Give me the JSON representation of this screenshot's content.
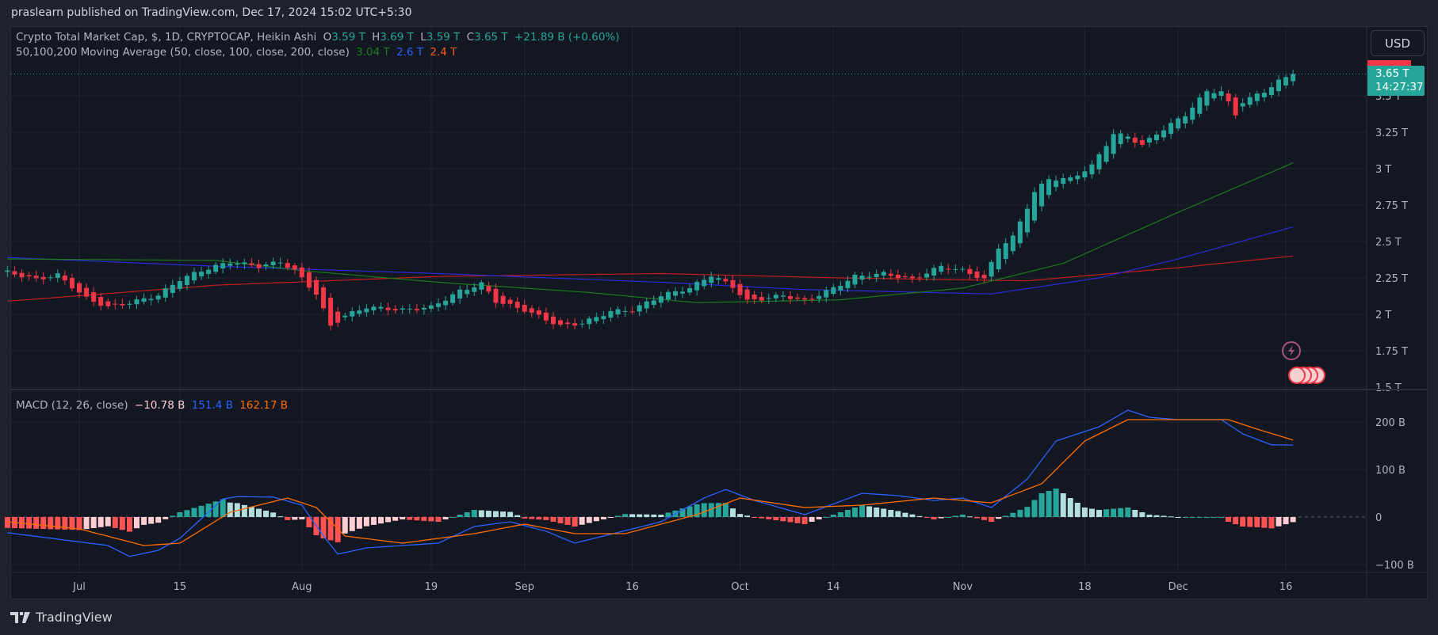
{
  "header": {
    "published": "praslearn published on TradingView.com, Dec 17, 2024 15:02 UTC+5:30"
  },
  "legend": {
    "title": "Crypto Total Market Cap, $, 1D, CRYPTOCAP, Heikin Ashi",
    "o_label": "O",
    "o": "3.59 T",
    "h_label": "H",
    "h": "3.69 T",
    "l_label": "L",
    "l": "3.59 T",
    "c_label": "C",
    "c": "3.65 T",
    "change": "+21.89 B (+0.60%)",
    "ma_title": "50,100,200 Moving Average (50, close, 100, close, 200, close)",
    "ma50": "3.04 T",
    "ma100": "2.6 T",
    "ma200": "2.4 T",
    "macd_title": "MACD (12, 26, close)",
    "macd_hist": "−10.78 B",
    "macd": "151.4 B",
    "macd_signal": "162.17 B"
  },
  "currency_button": "USD",
  "price_badge": {
    "price": "3.65 T",
    "countdown": "14:27:37"
  },
  "price_axis": [
    "3.5 T",
    "3.25 T",
    "3 T",
    "2.75 T",
    "2.5 T",
    "2.25 T",
    "2 T",
    "1.75 T",
    "1.5 T"
  ],
  "macd_axis": [
    "200 B",
    "100 B",
    "0",
    "−100 B"
  ],
  "time_axis": [
    "Jul",
    "15",
    "Aug",
    "19",
    "Sep",
    "16",
    "Oct",
    "14",
    "Nov",
    "18",
    "Dec",
    "16"
  ],
  "footer": {
    "brand": "TradingView"
  },
  "colors": {
    "up": "#26a69a",
    "down": "#f23645",
    "ma50": "#1b7a1b",
    "ma100": "#2a2ad8",
    "ma200": "#c11e1e",
    "macd": "#2962ff",
    "signal": "#ff6d00"
  },
  "chart_data": {
    "type": "candlestick-heikin-ashi",
    "price_unit": "T USD",
    "close_approx": [
      [
        "2024-06-21",
        2.29
      ],
      [
        "2024-06-25",
        2.24
      ],
      [
        "2024-06-28",
        2.27
      ],
      [
        "2024-07-02",
        2.11
      ],
      [
        "2024-07-05",
        2.05
      ],
      [
        "2024-07-08",
        2.08
      ],
      [
        "2024-07-12",
        2.13
      ],
      [
        "2024-07-15",
        2.24
      ],
      [
        "2024-07-18",
        2.3
      ],
      [
        "2024-07-22",
        2.36
      ],
      [
        "2024-07-26",
        2.33
      ],
      [
        "2024-07-29",
        2.36
      ],
      [
        "2024-07-31",
        2.3
      ],
      [
        "2024-08-03",
        2.14
      ],
      [
        "2024-08-05",
        1.92
      ],
      [
        "2024-08-07",
        1.99
      ],
      [
        "2024-08-10",
        2.05
      ],
      [
        "2024-08-15",
        2.03
      ],
      [
        "2024-08-19",
        2.05
      ],
      [
        "2024-08-23",
        2.16
      ],
      [
        "2024-08-26",
        2.21
      ],
      [
        "2024-08-28",
        2.09
      ],
      [
        "2024-09-01",
        2.03
      ],
      [
        "2024-09-06",
        1.92
      ],
      [
        "2024-09-09",
        1.94
      ],
      [
        "2024-09-13",
        2.02
      ],
      [
        "2024-09-16",
        2.03
      ],
      [
        "2024-09-20",
        2.13
      ],
      [
        "2024-09-24",
        2.18
      ],
      [
        "2024-09-27",
        2.27
      ],
      [
        "2024-09-30",
        2.19
      ],
      [
        "2024-10-02",
        2.09
      ],
      [
        "2024-10-07",
        2.13
      ],
      [
        "2024-10-10",
        2.09
      ],
      [
        "2024-10-14",
        2.18
      ],
      [
        "2024-10-17",
        2.26
      ],
      [
        "2024-10-21",
        2.28
      ],
      [
        "2024-10-25",
        2.24
      ],
      [
        "2024-10-29",
        2.33
      ],
      [
        "2024-11-01",
        2.3
      ],
      [
        "2024-11-04",
        2.24
      ],
      [
        "2024-11-06",
        2.46
      ],
      [
        "2024-11-08",
        2.53
      ],
      [
        "2024-11-11",
        2.84
      ],
      [
        "2024-11-13",
        2.93
      ],
      [
        "2024-11-16",
        2.93
      ],
      [
        "2024-11-19",
        3.02
      ],
      [
        "2024-11-22",
        3.24
      ],
      [
        "2024-11-24",
        3.22
      ],
      [
        "2024-11-26",
        3.16
      ],
      [
        "2024-11-28",
        3.24
      ],
      [
        "2024-12-02",
        3.37
      ],
      [
        "2024-12-05",
        3.53
      ],
      [
        "2024-12-07",
        3.53
      ],
      [
        "2024-12-09",
        3.37
      ],
      [
        "2024-12-10",
        3.46
      ],
      [
        "2024-12-13",
        3.53
      ],
      [
        "2024-12-15",
        3.6
      ],
      [
        "2024-12-17",
        3.65
      ]
    ],
    "ma50": [
      [
        "2024-06-21",
        2.38
      ],
      [
        "2024-07-20",
        2.37
      ],
      [
        "2024-08-01",
        2.3
      ],
      [
        "2024-08-20",
        2.22
      ],
      [
        "2024-09-10",
        2.15
      ],
      [
        "2024-09-25",
        2.08
      ],
      [
        "2024-10-15",
        2.1
      ],
      [
        "2024-11-01",
        2.18
      ],
      [
        "2024-11-15",
        2.35
      ],
      [
        "2024-12-01",
        2.7
      ],
      [
        "2024-12-17",
        3.04
      ]
    ],
    "ma100": [
      [
        "2024-06-21",
        2.39
      ],
      [
        "2024-07-20",
        2.33
      ],
      [
        "2024-08-20",
        2.28
      ],
      [
        "2024-09-20",
        2.22
      ],
      [
        "2024-10-10",
        2.17
      ],
      [
        "2024-11-05",
        2.14
      ],
      [
        "2024-11-20",
        2.25
      ],
      [
        "2024-12-01",
        2.38
      ],
      [
        "2024-12-17",
        2.6
      ]
    ],
    "ma200": [
      [
        "2024-06-21",
        2.09
      ],
      [
        "2024-07-20",
        2.2
      ],
      [
        "2024-08-20",
        2.26
      ],
      [
        "2024-09-20",
        2.28
      ],
      [
        "2024-10-15",
        2.25
      ],
      [
        "2024-11-10",
        2.23
      ],
      [
        "2024-12-01",
        2.32
      ],
      [
        "2024-12-17",
        2.4
      ]
    ],
    "macd_unit": "B",
    "macd_line": [
      [
        "2024-06-21",
        -33
      ],
      [
        "2024-07-05",
        -60
      ],
      [
        "2024-07-08",
        -83
      ],
      [
        "2024-07-12",
        -70
      ],
      [
        "2024-07-15",
        -45
      ],
      [
        "2024-07-21",
        38
      ],
      [
        "2024-07-23",
        43
      ],
      [
        "2024-07-28",
        42
      ],
      [
        "2024-08-01",
        25
      ],
      [
        "2024-08-04",
        -40
      ],
      [
        "2024-08-06",
        -78
      ],
      [
        "2024-08-10",
        -65
      ],
      [
        "2024-08-20",
        -55
      ],
      [
        "2024-08-25",
        -20
      ],
      [
        "2024-08-30",
        -10
      ],
      [
        "2024-09-04",
        -30
      ],
      [
        "2024-09-08",
        -55
      ],
      [
        "2024-09-12",
        -40
      ],
      [
        "2024-09-20",
        -10
      ],
      [
        "2024-09-26",
        40
      ],
      [
        "2024-09-29",
        58
      ],
      [
        "2024-10-03",
        35
      ],
      [
        "2024-10-10",
        5
      ],
      [
        "2024-10-18",
        50
      ],
      [
        "2024-10-23",
        45
      ],
      [
        "2024-10-28",
        35
      ],
      [
        "2024-11-01",
        40
      ],
      [
        "2024-11-05",
        20
      ],
      [
        "2024-11-10",
        80
      ],
      [
        "2024-11-14",
        160
      ],
      [
        "2024-11-20",
        190
      ],
      [
        "2024-11-24",
        225
      ],
      [
        "2024-11-27",
        210
      ],
      [
        "2024-12-01",
        205
      ],
      [
        "2024-12-07",
        205
      ],
      [
        "2024-12-10",
        175
      ],
      [
        "2024-12-14",
        152
      ],
      [
        "2024-12-17",
        151.4
      ]
    ],
    "signal_line": [
      [
        "2024-06-21",
        -10
      ],
      [
        "2024-07-01",
        -25
      ],
      [
        "2024-07-10",
        -60
      ],
      [
        "2024-07-15",
        -55
      ],
      [
        "2024-07-22",
        10
      ],
      [
        "2024-07-30",
        40
      ],
      [
        "2024-08-03",
        20
      ],
      [
        "2024-08-07",
        -40
      ],
      [
        "2024-08-15",
        -55
      ],
      [
        "2024-08-25",
        -35
      ],
      [
        "2024-09-01",
        -15
      ],
      [
        "2024-09-08",
        -35
      ],
      [
        "2024-09-15",
        -35
      ],
      [
        "2024-09-25",
        5
      ],
      [
        "2024-10-01",
        40
      ],
      [
        "2024-10-10",
        20
      ],
      [
        "2024-10-18",
        25
      ],
      [
        "2024-10-28",
        40
      ],
      [
        "2024-11-05",
        30
      ],
      [
        "2024-11-12",
        70
      ],
      [
        "2024-11-18",
        160
      ],
      [
        "2024-11-24",
        205
      ],
      [
        "2024-12-01",
        205
      ],
      [
        "2024-12-08",
        205
      ],
      [
        "2024-12-12",
        185
      ],
      [
        "2024-12-17",
        162.17
      ]
    ],
    "price_ylim": [
      1.5,
      3.7
    ],
    "macd_ylim": [
      -100,
      200
    ],
    "grid": true
  }
}
